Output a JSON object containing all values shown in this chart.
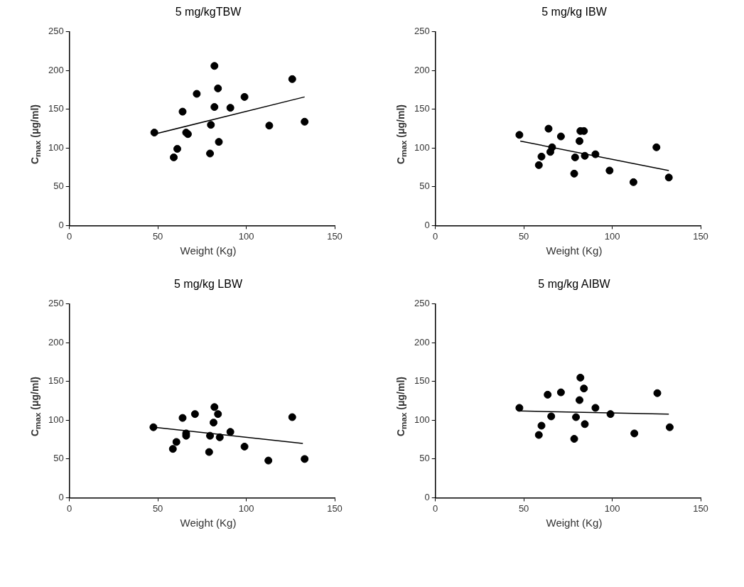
{
  "chart_data": [
    {
      "type": "scatter",
      "title": "5 mg/kgTBW",
      "xlabel": "Weight (Kg)",
      "ylabel": "C$_{max}$ (μg/ml)",
      "xlim": [
        0,
        150
      ],
      "xticks": [
        0,
        50,
        100,
        150
      ],
      "ylim": [
        0,
        250
      ],
      "yticks": [
        0,
        50,
        100,
        150,
        200,
        250
      ],
      "grid": false,
      "series": [
        {
          "marker": "circle",
          "color": "#000000",
          "x": [
            48,
            59,
            61,
            64,
            66,
            67,
            72,
            79.5,
            80,
            82,
            82,
            84,
            84.5,
            91,
            99,
            113,
            126,
            133
          ],
          "values": [
            120,
            88,
            99,
            147,
            120,
            118,
            170,
            93,
            130,
            153,
            206,
            177,
            108,
            152,
            166,
            129,
            189,
            134
          ]
        },
        {
          "type": "line",
          "marker": "none",
          "color": "#000000",
          "x": [
            48,
            133
          ],
          "values": [
            118,
            166
          ]
        }
      ]
    },
    {
      "type": "scatter",
      "title": "5 mg/kg IBW",
      "xlabel": "Weight (Kg)",
      "ylabel": "C$_{max}$ (μg/ml)",
      "xlim": [
        0,
        150
      ],
      "xticks": [
        0,
        50,
        100,
        150
      ],
      "ylim": [
        0,
        250
      ],
      "yticks": [
        0,
        50,
        100,
        150,
        200,
        250
      ],
      "grid": false,
      "series": [
        {
          "marker": "circle",
          "color": "#000000",
          "x": [
            47.5,
            58.5,
            60,
            64,
            65,
            66,
            71,
            78.5,
            79,
            81.5,
            82,
            84,
            84.5,
            90.5,
            98.5,
            112,
            125,
            132
          ],
          "values": [
            117,
            78,
            89,
            125,
            95,
            101,
            115,
            67,
            88,
            109,
            122,
            122,
            90,
            92,
            71,
            56,
            101,
            62
          ]
        },
        {
          "type": "line",
          "marker": "none",
          "color": "#000000",
          "x": [
            48,
            132
          ],
          "values": [
            109,
            71
          ]
        }
      ]
    },
    {
      "type": "scatter",
      "title": "5 mg/kg LBW",
      "xlabel": "Weight (Kg)",
      "ylabel": "C$_{max}$ (μg/ml)",
      "xlim": [
        0,
        150
      ],
      "xticks": [
        0,
        50,
        100,
        150
      ],
      "ylim": [
        0,
        250
      ],
      "yticks": [
        0,
        50,
        100,
        150,
        200,
        250
      ],
      "grid": false,
      "series": [
        {
          "marker": "circle",
          "color": "#000000",
          "x": [
            47.5,
            58.5,
            60.5,
            64,
            66,
            66,
            71,
            79,
            79.5,
            81.5,
            82,
            84,
            85,
            91,
            99,
            112.5,
            126,
            133
          ],
          "values": [
            91,
            63,
            72,
            103,
            80,
            83,
            108,
            59,
            80,
            97,
            117,
            108,
            78,
            85,
            66,
            48,
            104,
            50
          ]
        },
        {
          "type": "line",
          "marker": "none",
          "color": "#000000",
          "x": [
            48,
            132
          ],
          "values": [
            91,
            70
          ]
        }
      ]
    },
    {
      "type": "scatter",
      "title": "5 mg/kg AIBW",
      "xlabel": "Weight (Kg)",
      "ylabel": "C$_{max}$ (μg/ml)",
      "xlim": [
        0,
        150
      ],
      "xticks": [
        0,
        50,
        100,
        150
      ],
      "ylim": [
        0,
        250
      ],
      "yticks": [
        0,
        50,
        100,
        150,
        200,
        250
      ],
      "grid": false,
      "series": [
        {
          "marker": "circle",
          "color": "#000000",
          "x": [
            47.5,
            58.5,
            60,
            63.5,
            65.5,
            71,
            78.5,
            79.5,
            81.5,
            82,
            84,
            84.5,
            90.5,
            99,
            112.5,
            125.5,
            132.5
          ],
          "values": [
            116,
            81,
            93,
            133,
            105,
            136,
            76,
            104,
            126,
            155,
            141,
            95,
            116,
            108,
            83,
            135,
            91
          ]
        },
        {
          "type": "line",
          "marker": "none",
          "color": "#000000",
          "x": [
            48,
            132
          ],
          "values": [
            112,
            108
          ]
        }
      ]
    }
  ]
}
